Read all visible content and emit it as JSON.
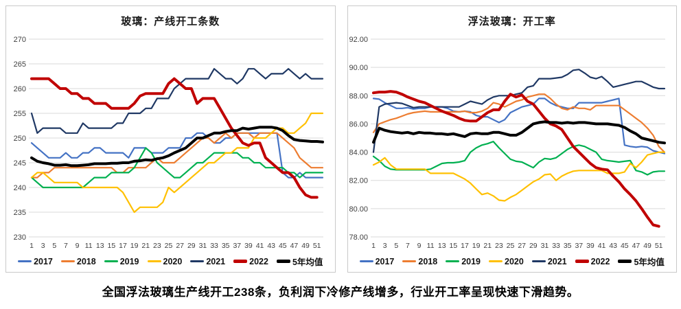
{
  "caption": "全国浮法玻璃生产线开工238条，负利润下冷修产线增多，行业开工率呈现快速下滑趋势。",
  "chart_data": [
    {
      "type": "line",
      "title": "玻璃：产线开工条数",
      "xlabel": "",
      "ylabel": "",
      "ylim": [
        230,
        270
      ],
      "y_step": 5,
      "y_decimals": 0,
      "grid": true,
      "legend_position": "bottom",
      "x_tick_labels": [
        1,
        3,
        5,
        7,
        9,
        11,
        13,
        15,
        17,
        19,
        21,
        23,
        25,
        27,
        29,
        31,
        33,
        35,
        37,
        39,
        41,
        43,
        45,
        47,
        49,
        51
      ],
      "series": [
        {
          "name": "2017",
          "color": "#4472C4",
          "width": 2.2,
          "values": [
            249,
            248,
            247,
            246,
            246,
            246,
            247,
            246,
            246,
            247,
            247,
            248,
            248,
            247,
            247,
            247,
            247,
            246,
            248,
            248,
            248,
            247,
            247,
            247,
            248,
            248,
            248,
            250,
            250,
            251,
            251,
            250,
            249,
            249,
            250,
            250,
            251,
            251,
            251,
            251,
            251,
            251,
            251,
            251,
            243,
            242,
            242,
            243,
            242,
            242,
            242,
            242
          ]
        },
        {
          "name": "2018",
          "color": "#ED7D31",
          "width": 2.2,
          "values": [
            242,
            242,
            243,
            243,
            244,
            244,
            244,
            244,
            244,
            244,
            244,
            244,
            244,
            244,
            244,
            243,
            243,
            244,
            244,
            244,
            244,
            245,
            246,
            245,
            245,
            245,
            246,
            247,
            248,
            249,
            250,
            250,
            249,
            250,
            251,
            250,
            251,
            251,
            251,
            250,
            251,
            251,
            251,
            251,
            250,
            249,
            248,
            246,
            245,
            244,
            244,
            244
          ]
        },
        {
          "name": "2019",
          "color": "#00B050",
          "width": 2.2,
          "values": [
            242,
            241,
            240,
            240,
            240,
            240,
            240,
            240,
            240,
            240,
            241,
            242,
            242,
            242,
            243,
            243,
            243,
            243,
            244,
            246,
            248,
            247,
            245,
            244,
            243,
            242,
            242,
            243,
            244,
            245,
            245,
            246,
            247,
            247,
            247,
            247,
            247,
            246,
            246,
            245,
            245,
            244,
            244,
            244,
            244,
            243,
            243,
            242,
            243,
            243,
            243,
            243
          ]
        },
        {
          "name": "2020",
          "color": "#FFC000",
          "width": 2.2,
          "values": [
            242,
            243,
            243,
            242,
            241,
            241,
            241,
            241,
            241,
            240,
            240,
            240,
            240,
            240,
            240,
            240,
            239,
            237,
            235,
            236,
            236,
            236,
            236,
            237,
            240,
            239,
            240,
            241,
            242,
            243,
            244,
            245,
            245,
            246,
            247,
            247,
            248,
            248,
            248,
            250,
            250,
            250,
            251,
            252,
            252,
            251,
            251,
            252,
            253,
            255,
            255,
            255
          ]
        },
        {
          "name": "2021",
          "color": "#1F3864",
          "width": 2.2,
          "values": [
            255,
            251,
            252,
            252,
            252,
            252,
            251,
            251,
            251,
            253,
            252,
            252,
            252,
            252,
            252,
            253,
            253,
            255,
            255,
            255,
            256,
            256,
            258,
            258,
            258,
            260,
            261,
            262,
            262,
            262,
            262,
            262,
            264,
            263,
            262,
            262,
            261,
            262,
            264,
            264,
            263,
            262,
            263,
            263,
            263,
            264,
            263,
            262,
            263,
            262,
            262,
            262
          ]
        },
        {
          "name": "2022",
          "color": "#C00000",
          "width": 4,
          "values": [
            262,
            262,
            262,
            262,
            261,
            260,
            260,
            259,
            259,
            258,
            258,
            257,
            257,
            257,
            256,
            256,
            256,
            256,
            257,
            258.5,
            259,
            259,
            259,
            259,
            261,
            262,
            261,
            260,
            260,
            257,
            258,
            258,
            258,
            256,
            254,
            252,
            250.5,
            249,
            248.5,
            249,
            249,
            246,
            245,
            244,
            243,
            243,
            242,
            240,
            238.5,
            238,
            238,
            null
          ]
        },
        {
          "name": "5年均值",
          "color": "#000000",
          "width": 4,
          "values": [
            246,
            245.3,
            245,
            244.8,
            244.5,
            244.5,
            244.6,
            244.4,
            244.4,
            244.5,
            244.6,
            244.8,
            244.8,
            244.8,
            244.9,
            244.9,
            245,
            245,
            245.3,
            245.4,
            245.6,
            245.5,
            245.8,
            246,
            246.4,
            247,
            247.5,
            248,
            249,
            250,
            250,
            250.5,
            251,
            251,
            251.3,
            251.5,
            251.5,
            252,
            251.8,
            252,
            252.2,
            252.2,
            252.2,
            252,
            251.5,
            250.5,
            249.7,
            249.5,
            249.4,
            249.3,
            249.3,
            249.2
          ]
        }
      ]
    },
    {
      "type": "line",
      "title": "浮法玻璃：开工率",
      "xlabel": "",
      "ylabel": "",
      "ylim": [
        78,
        92
      ],
      "y_step": 2,
      "y_decimals": 2,
      "grid": true,
      "legend_position": "bottom",
      "x_tick_labels": [
        1,
        3,
        5,
        7,
        9,
        11,
        13,
        15,
        17,
        19,
        21,
        23,
        25,
        27,
        29,
        31,
        33,
        35,
        37,
        39,
        41,
        43,
        45,
        47,
        49,
        51
      ],
      "series": [
        {
          "name": "2017",
          "color": "#4472C4",
          "width": 2.2,
          "values": [
            87.8,
            87.75,
            87.5,
            87.3,
            87.1,
            87.1,
            87.15,
            87.05,
            87.1,
            87.1,
            87.2,
            87.2,
            87.2,
            87.1,
            86.9,
            86.85,
            86.9,
            86.85,
            86.6,
            86.5,
            86.5,
            86.3,
            86.1,
            86.3,
            86.8,
            87.0,
            87.2,
            87.3,
            87.4,
            87.8,
            87.8,
            87.5,
            87.3,
            87.2,
            87.1,
            87.1,
            87.5,
            87.5,
            87.5,
            87.5,
            87.5,
            87.6,
            87.7,
            87.8,
            84.5,
            84.4,
            84.35,
            84.4,
            84.35,
            84.1,
            84.0,
            83.9
          ]
        },
        {
          "name": "2018",
          "color": "#ED7D31",
          "width": 2.2,
          "values": [
            85.4,
            86.0,
            86.15,
            86.3,
            86.4,
            86.55,
            86.7,
            86.8,
            86.85,
            86.9,
            86.85,
            86.85,
            86.85,
            86.85,
            86.85,
            86.85,
            86.9,
            86.8,
            86.8,
            86.9,
            87.1,
            87.5,
            87.4,
            87.2,
            87.4,
            87.6,
            87.7,
            87.9,
            88.0,
            88.1,
            88.1,
            87.8,
            87.4,
            87.1,
            87.0,
            87.2,
            87.1,
            87.1,
            87.0,
            87.3,
            87.3,
            87.3,
            87.3,
            87.3,
            87.0,
            86.7,
            86.4,
            86.1,
            85.7,
            85.2,
            84.4,
            84.0
          ]
        },
        {
          "name": "2019",
          "color": "#00B050",
          "width": 2.2,
          "values": [
            83.7,
            83.4,
            83.0,
            82.8,
            82.75,
            82.75,
            82.75,
            82.75,
            82.75,
            82.75,
            82.8,
            83.0,
            83.2,
            83.25,
            83.25,
            83.3,
            83.4,
            84.0,
            84.3,
            84.5,
            84.6,
            84.75,
            84.3,
            83.9,
            83.5,
            83.35,
            83.3,
            83.1,
            82.9,
            83.3,
            83.55,
            83.5,
            83.6,
            83.9,
            84.2,
            84.4,
            84.5,
            84.4,
            84.2,
            84.0,
            83.5,
            83.4,
            83.35,
            83.3,
            83.35,
            83.4,
            82.7,
            82.6,
            82.4,
            82.6,
            82.65,
            82.65
          ]
        },
        {
          "name": "2020",
          "color": "#FFC000",
          "width": 2.2,
          "values": [
            83.1,
            83.3,
            83.6,
            83.1,
            82.8,
            82.8,
            82.8,
            82.8,
            82.8,
            82.8,
            82.5,
            82.5,
            82.5,
            82.5,
            82.5,
            82.3,
            82.1,
            81.8,
            81.4,
            81.0,
            81.1,
            80.9,
            80.6,
            80.55,
            80.8,
            81.0,
            81.3,
            81.6,
            81.9,
            82.1,
            82.4,
            82.45,
            82.0,
            82.3,
            82.5,
            82.65,
            82.7,
            82.7,
            82.7,
            82.7,
            82.7,
            82.5,
            82.5,
            82.5,
            82.6,
            83.2,
            82.9,
            83.3,
            83.8,
            83.9,
            84.0,
            84.0
          ]
        },
        {
          "name": "2021",
          "color": "#1F3864",
          "width": 2.2,
          "values": [
            84.0,
            87.2,
            87.4,
            87.45,
            87.5,
            87.45,
            87.3,
            87.15,
            87.2,
            87.2,
            87.2,
            87.2,
            87.2,
            87.2,
            87.2,
            87.2,
            87.4,
            87.6,
            87.5,
            87.4,
            87.7,
            87.9,
            88.0,
            88.0,
            88.0,
            88.1,
            88.2,
            88.6,
            88.7,
            89.2,
            89.2,
            89.2,
            89.25,
            89.3,
            89.5,
            89.8,
            89.85,
            89.6,
            89.3,
            89.2,
            89.35,
            89.0,
            88.6,
            88.7,
            88.8,
            88.9,
            89.0,
            89.0,
            88.8,
            88.6,
            88.5,
            88.5
          ]
        },
        {
          "name": "2022",
          "color": "#C00000",
          "width": 4,
          "values": [
            88.2,
            88.25,
            88.25,
            88.3,
            88.25,
            88.1,
            87.9,
            87.75,
            87.6,
            87.5,
            87.3,
            87.1,
            86.9,
            86.75,
            86.6,
            86.4,
            86.25,
            86.2,
            86.2,
            86.5,
            86.8,
            87.0,
            87.0,
            87.6,
            88.1,
            87.9,
            88.05,
            87.6,
            87.4,
            86.9,
            86.4,
            86.0,
            85.85,
            85.6,
            85.0,
            84.4,
            84.0,
            83.6,
            83.2,
            82.9,
            82.8,
            82.75,
            82.3,
            81.9,
            81.4,
            81.0,
            80.55,
            80.0,
            79.4,
            78.85,
            78.75,
            null
          ]
        },
        {
          "name": "5年均值",
          "color": "#000000",
          "width": 4,
          "values": [
            84.7,
            85.7,
            85.55,
            85.45,
            85.4,
            85.35,
            85.4,
            85.3,
            85.4,
            85.35,
            85.35,
            85.3,
            85.3,
            85.25,
            85.3,
            85.2,
            85.1,
            85.3,
            85.35,
            85.3,
            85.3,
            85.4,
            85.4,
            85.3,
            85.2,
            85.2,
            85.4,
            85.7,
            86.0,
            86.1,
            86.15,
            86.1,
            86.1,
            86.05,
            86.1,
            86.05,
            86.1,
            86.1,
            86.05,
            86.0,
            86.0,
            86.0,
            85.95,
            85.9,
            85.75,
            85.5,
            85.3,
            85.0,
            84.9,
            84.8,
            84.7,
            84.65
          ]
        }
      ]
    }
  ]
}
